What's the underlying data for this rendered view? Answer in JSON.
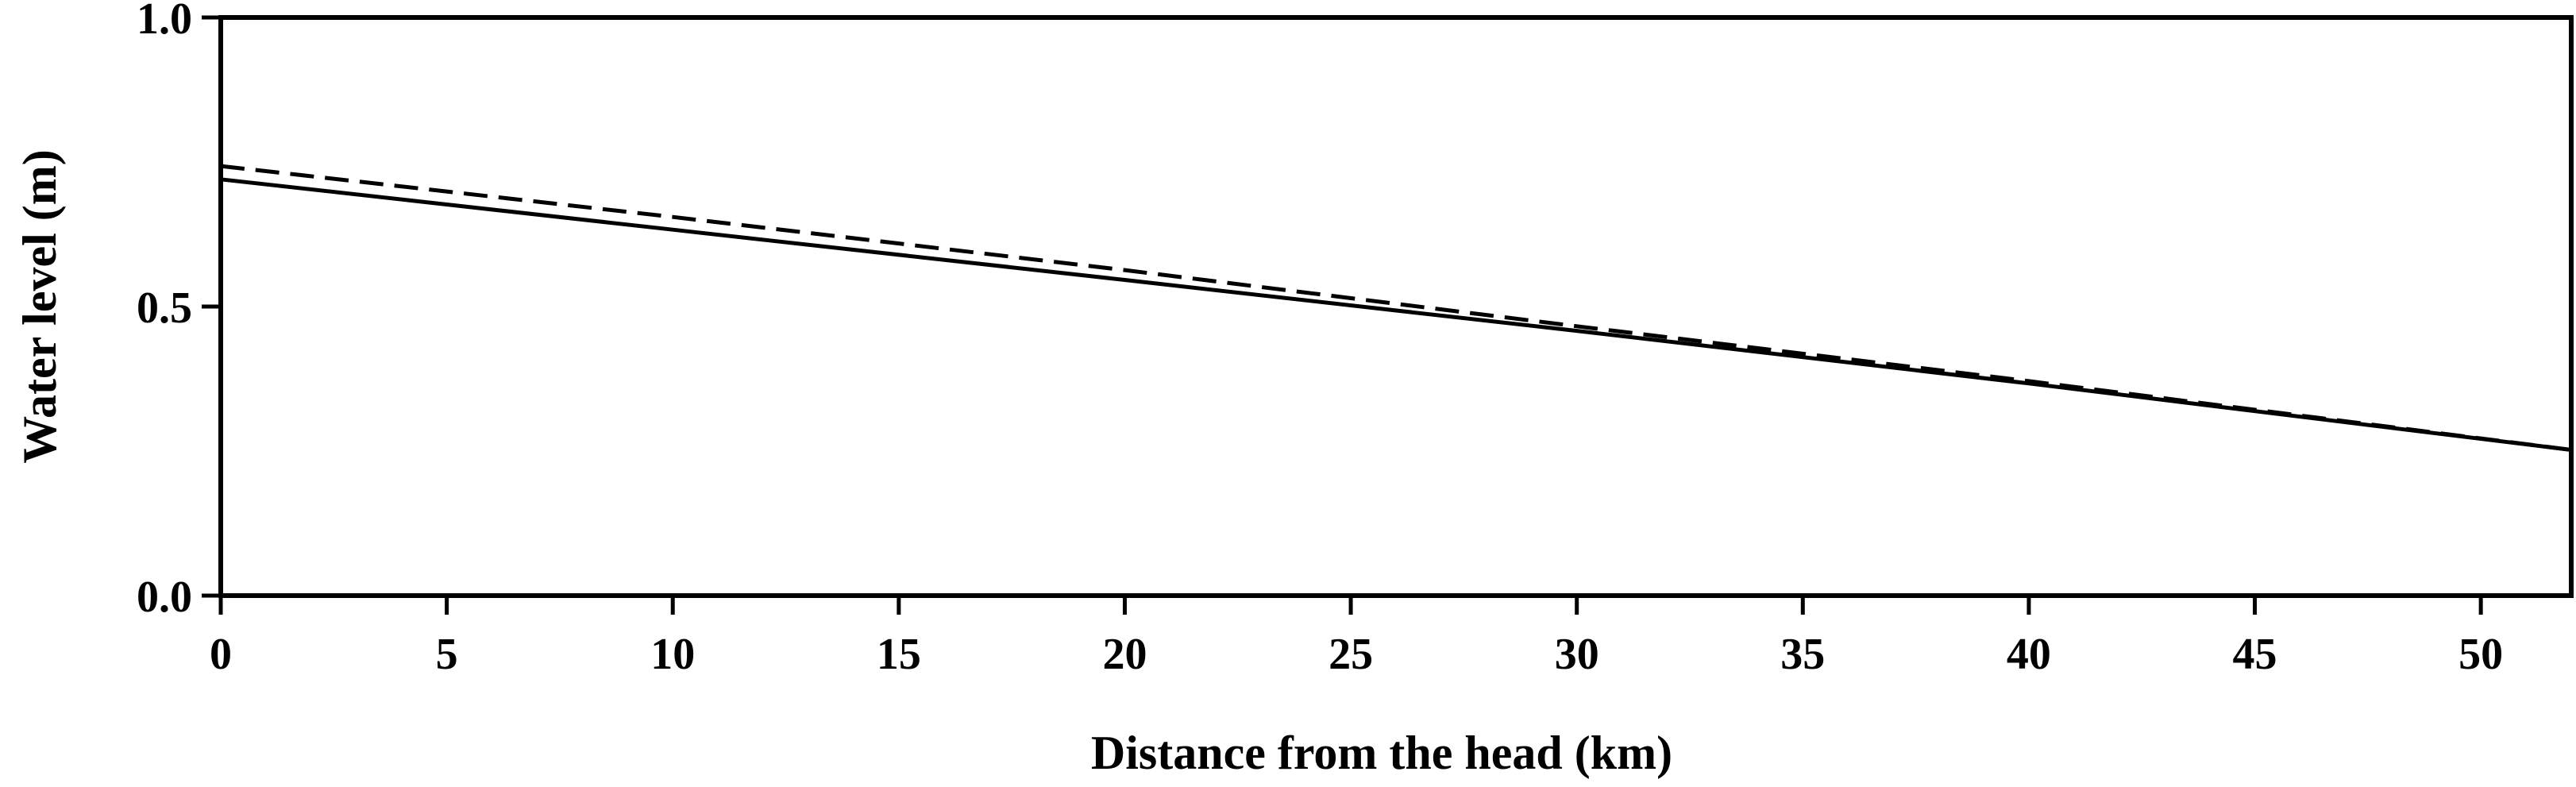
{
  "chart_data": {
    "type": "line",
    "title": "",
    "xlabel": "Distance from the head (km)",
    "ylabel": "Water level (m)",
    "xlim": [
      0,
      52
    ],
    "ylim": [
      0.0,
      1.0
    ],
    "x_ticks": [
      0,
      5,
      10,
      15,
      20,
      25,
      30,
      35,
      40,
      45,
      50
    ],
    "x_tick_labels": [
      "0",
      "5",
      "10",
      "15",
      "20",
      "25",
      "30",
      "35",
      "40",
      "45",
      "50"
    ],
    "y_ticks": [
      0.0,
      0.5,
      1.0
    ],
    "y_tick_labels": [
      "0.0",
      "0.5",
      "1.0"
    ],
    "grid": false,
    "legend": "none",
    "series": [
      {
        "style": "solid",
        "color": "#000000",
        "x": [
          0,
          10,
          20,
          30,
          40,
          52
        ],
        "y": [
          0.72,
          0.633,
          0.546,
          0.458,
          0.367,
          0.252
        ]
      },
      {
        "style": "dashed",
        "color": "#000000",
        "x": [
          0,
          10,
          20,
          30,
          40,
          52
        ],
        "y": [
          0.743,
          0.655,
          0.563,
          0.466,
          0.371,
          0.252
        ]
      }
    ]
  }
}
